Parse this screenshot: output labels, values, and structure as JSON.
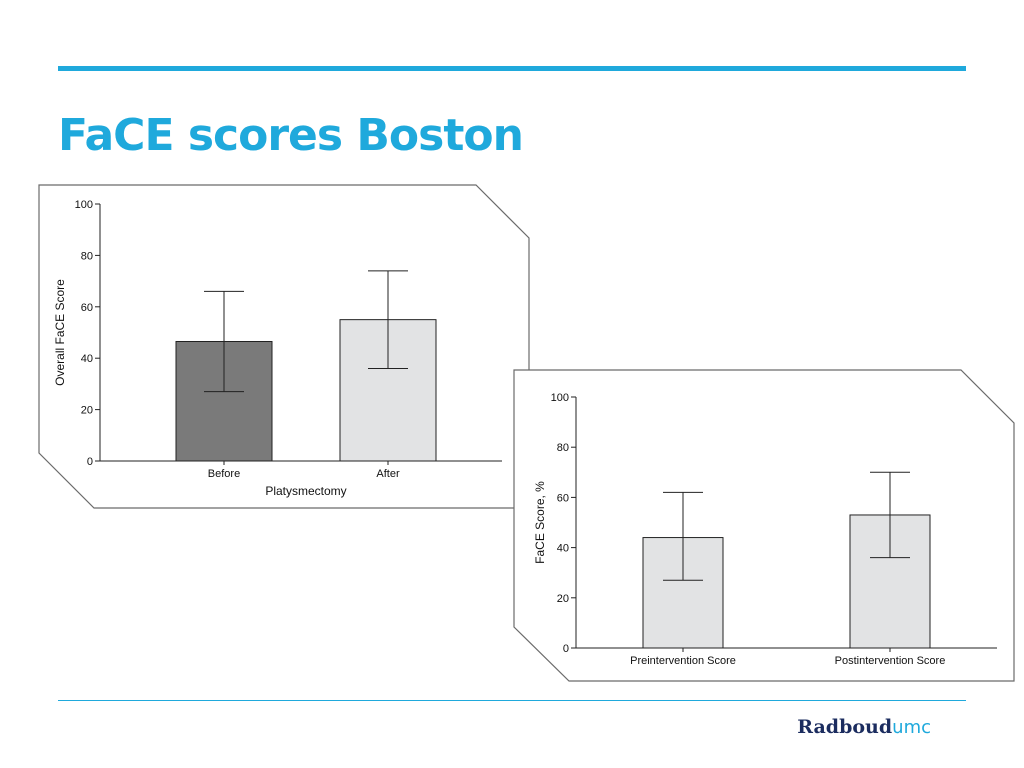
{
  "slide": {
    "title": "FaCE scores Boston",
    "logo_part1": "Radboud",
    "logo_part2": "umc",
    "accent_color": "#1fa9dc",
    "logo_navy": "#1b2c5f"
  },
  "chart_data": [
    {
      "type": "bar",
      "categories": [
        "Before",
        "After"
      ],
      "values": [
        46.5,
        55
      ],
      "error_low": [
        27,
        36
      ],
      "error_high": [
        66,
        74
      ],
      "bar_colors": [
        "#7a7a7a",
        "#e2e3e4"
      ],
      "xlabel": "Platysmectomy",
      "ylabel": "Overall FaCE Score",
      "ylim": [
        0,
        100
      ],
      "yticks": [
        0,
        20,
        40,
        60,
        80,
        100
      ],
      "grid": false
    },
    {
      "type": "bar",
      "categories": [
        "Preintervention Score",
        "Postintervention Score"
      ],
      "values": [
        44,
        53
      ],
      "error_low": [
        27,
        36
      ],
      "error_high": [
        62,
        70
      ],
      "bar_colors": [
        "#e2e3e4",
        "#e2e3e4"
      ],
      "xlabel": "",
      "ylabel": "FaCE Score, %",
      "ylim": [
        0,
        100
      ],
      "yticks": [
        0,
        20,
        40,
        60,
        80,
        100
      ],
      "grid": false
    }
  ]
}
